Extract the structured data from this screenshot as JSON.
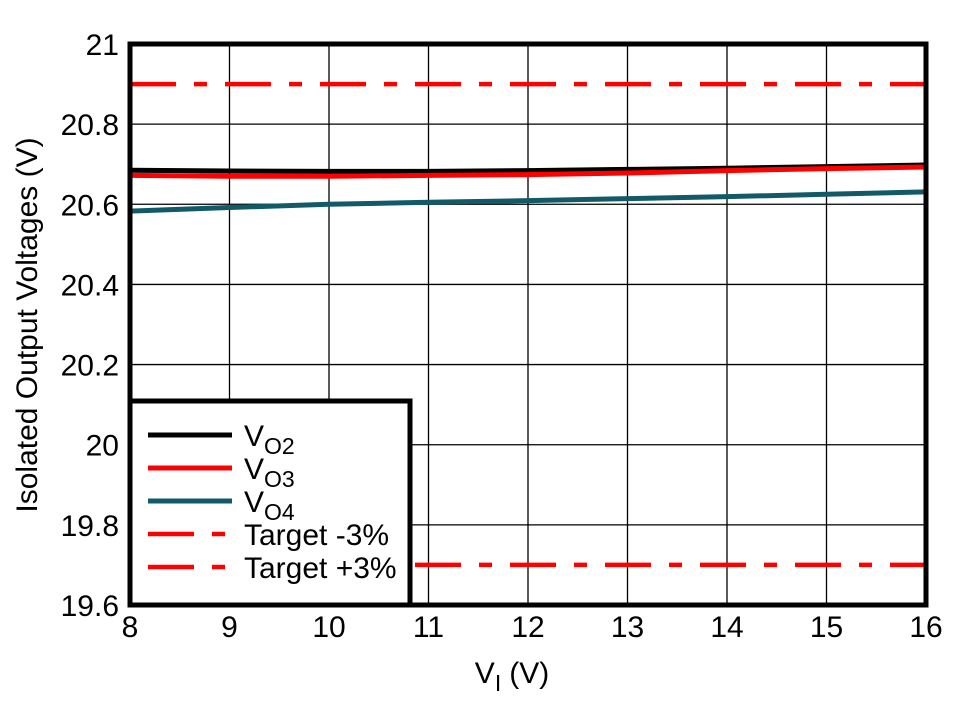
{
  "chart_data": {
    "type": "line",
    "title": "",
    "xlabel": {
      "text": "VI (V)",
      "main": "V",
      "sub": "I",
      "post": "(V)"
    },
    "ylabel": "Isolated Output Voltages (V)",
    "xlim": [
      8,
      16
    ],
    "ylim": [
      19.6,
      21
    ],
    "x": [
      8,
      9,
      10,
      11,
      12,
      13,
      14,
      15,
      16
    ],
    "xticks": [
      8,
      9,
      10,
      11,
      12,
      13,
      14,
      15,
      16
    ],
    "xtick_labels": [
      "8",
      "9",
      "10",
      "11",
      "12",
      "13",
      "14",
      "15",
      "16"
    ],
    "yticks": [
      19.6,
      19.8,
      20,
      20.2,
      20.4,
      20.6,
      20.8,
      21
    ],
    "ytick_labels": [
      "19.6",
      "19.8",
      "20",
      "20.2",
      "20.4",
      "20.6",
      "20.8",
      "21"
    ],
    "grid": true,
    "legend_position": "lower-left",
    "series": [
      {
        "name": "VO2",
        "legend_main": "V",
        "legend_sub": "O2",
        "color": "#000000",
        "style": "solid",
        "values": [
          20.685,
          20.683,
          20.682,
          20.682,
          20.684,
          20.687,
          20.69,
          20.694,
          20.698
        ]
      },
      {
        "name": "VO3",
        "legend_main": "V",
        "legend_sub": "O3",
        "color": "#ff0000",
        "style": "solid",
        "values": [
          20.672,
          20.67,
          20.67,
          20.672,
          20.674,
          20.678,
          20.684,
          20.689,
          20.693
        ]
      },
      {
        "name": "VO4",
        "legend_main": "V",
        "legend_sub": "O4",
        "color": "#125a68",
        "style": "solid",
        "values": [
          20.583,
          20.592,
          20.6,
          20.605,
          20.609,
          20.614,
          20.619,
          20.625,
          20.631
        ]
      },
      {
        "name": "Target -3%",
        "legend_main": "Target -3%",
        "legend_sub": "",
        "color": "#ff0000",
        "style": "dashdot",
        "values": [
          19.7,
          19.7,
          19.7,
          19.7,
          19.7,
          19.7,
          19.7,
          19.7,
          19.7
        ]
      },
      {
        "name": "Target +3%",
        "legend_main": "Target +3%",
        "legend_sub": "",
        "color": "#ff0000",
        "style": "dashdot",
        "values": [
          20.9,
          20.9,
          20.9,
          20.9,
          20.9,
          20.9,
          20.9,
          20.9,
          20.9
        ]
      }
    ],
    "colors": {
      "background": "#ffffff",
      "frame": "#000000",
      "grid": "#000000",
      "accent_red": "#ff0000",
      "accent_teal": "#125a68"
    }
  }
}
